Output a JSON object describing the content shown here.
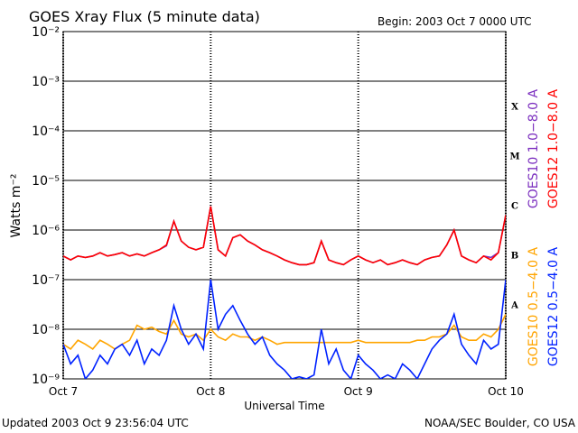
{
  "chart_data": {
    "type": "line",
    "title": "GOES Xray Flux (5 minute data)",
    "subtitle": "Begin:  2003 Oct 7 0000 UTC",
    "ylabel": "Watts m⁻²",
    "xlabel": "Universal Time",
    "footer_left": "Updated 2003 Oct  9 23:56:04 UTC",
    "footer_right": "NOAA/SEC Boulder, CO USA",
    "log_y": true,
    "grid": true,
    "class_labels": [
      "X",
      "M",
      "C",
      "B",
      "A"
    ],
    "xlim": [
      0,
      3
    ],
    "xticks": [
      {
        "value": 0,
        "label": "Oct 7"
      },
      {
        "value": 1,
        "label": "Oct 8"
      },
      {
        "value": 2,
        "label": "Oct 9"
      },
      {
        "value": 3,
        "label": "Oct 10"
      }
    ],
    "ylim": [
      1e-09,
      0.01
    ],
    "yticks": [
      {
        "value": 1e-09,
        "label": "10⁻⁹"
      },
      {
        "value": 1e-08,
        "label": "10⁻⁸"
      },
      {
        "value": 1e-07,
        "label": "10⁻⁷"
      },
      {
        "value": 1e-06,
        "label": "10⁻⁶"
      },
      {
        "value": 1e-05,
        "label": "10⁻⁵"
      },
      {
        "value": 0.0001,
        "label": "10⁻⁴"
      },
      {
        "value": 0.001,
        "label": "10⁻³"
      },
      {
        "value": 0.01,
        "label": "10⁻²"
      }
    ],
    "x": [
      0,
      0.05,
      0.1,
      0.15,
      0.2,
      0.25,
      0.3,
      0.35,
      0.4,
      0.45,
      0.5,
      0.55,
      0.6,
      0.65,
      0.7,
      0.75,
      0.8,
      0.85,
      0.9,
      0.95,
      1,
      1.05,
      1.1,
      1.15,
      1.2,
      1.25,
      1.3,
      1.35,
      1.4,
      1.45,
      1.5,
      1.55,
      1.6,
      1.65,
      1.7,
      1.75,
      1.8,
      1.85,
      1.9,
      1.95,
      2,
      2.05,
      2.1,
      2.15,
      2.2,
      2.25,
      2.3,
      2.35,
      2.4,
      2.45,
      2.5,
      2.55,
      2.6,
      2.65,
      2.7,
      2.75,
      2.8,
      2.85,
      2.9,
      2.95,
      3
    ],
    "series": [
      {
        "name": "GOES10 1.0−8.0 A",
        "color": "#7b2fbf",
        "values": [
          3e-07,
          2.5e-07,
          3e-07,
          2.8e-07,
          3e-07,
          3.5e-07,
          3e-07,
          3.2e-07,
          3.5e-07,
          3e-07,
          3.3e-07,
          3e-07,
          3.5e-07,
          4e-07,
          4.8e-07,
          1.5e-06,
          6e-07,
          4.5e-07,
          4e-07,
          4.5e-07,
          3e-06,
          4e-07,
          3e-07,
          7e-07,
          8e-07,
          6e-07,
          5e-07,
          4e-07,
          3.5e-07,
          3e-07,
          2.5e-07,
          2.2e-07,
          2e-07,
          2e-07,
          2.2e-07,
          6e-07,
          2.5e-07,
          2.2e-07,
          2e-07,
          2.5e-07,
          3e-07,
          2.5e-07,
          2.2e-07,
          2.5e-07,
          2e-07,
          2.2e-07,
          2.5e-07,
          2.2e-07,
          2e-07,
          2.5e-07,
          2.8e-07,
          3e-07,
          5e-07,
          1e-06,
          3e-07,
          2.5e-07,
          2.2e-07,
          3e-07,
          2.8e-07,
          3.5e-07,
          2e-06
        ]
      },
      {
        "name": "GOES12 1.0−8.0 A",
        "color": "#ff0000",
        "values": [
          3e-07,
          2.5e-07,
          3e-07,
          2.8e-07,
          3e-07,
          3.5e-07,
          3e-07,
          3.2e-07,
          3.5e-07,
          3e-07,
          3.3e-07,
          3e-07,
          3.5e-07,
          4e-07,
          5e-07,
          1.5e-06,
          6e-07,
          4.5e-07,
          4e-07,
          4.5e-07,
          3e-06,
          4e-07,
          3e-07,
          7e-07,
          8e-07,
          6e-07,
          5e-07,
          4e-07,
          3.5e-07,
          3e-07,
          2.5e-07,
          2.2e-07,
          2e-07,
          2e-07,
          2.2e-07,
          6e-07,
          2.5e-07,
          2.2e-07,
          2e-07,
          2.5e-07,
          3e-07,
          2.5e-07,
          2.2e-07,
          2.5e-07,
          2e-07,
          2.2e-07,
          2.5e-07,
          2.2e-07,
          2e-07,
          2.5e-07,
          2.8e-07,
          3e-07,
          5e-07,
          1e-06,
          3e-07,
          2.5e-07,
          2.2e-07,
          3e-07,
          2.5e-07,
          3.5e-07,
          2e-06
        ]
      },
      {
        "name": "GOES10 0.5−4.0 A",
        "color": "#ffa500",
        "values": [
          5e-09,
          4e-09,
          6e-09,
          5e-09,
          4e-09,
          6e-09,
          5e-09,
          4e-09,
          5e-09,
          6e-09,
          1.2e-08,
          1e-08,
          1.1e-08,
          9e-09,
          8e-09,
          1.5e-08,
          8e-09,
          7e-09,
          8e-09,
          6e-09,
          1e-08,
          7e-09,
          6e-09,
          8e-09,
          7e-09,
          7e-09,
          6e-09,
          7e-09,
          6e-09,
          5e-09,
          5.4e-09,
          5.4e-09,
          5.4e-09,
          5.4e-09,
          5.4e-09,
          5.4e-09,
          5.4e-09,
          5.4e-09,
          5.4e-09,
          5.4e-09,
          6e-09,
          5.4e-09,
          5.4e-09,
          5.4e-09,
          5.4e-09,
          5.4e-09,
          5.4e-09,
          5.4e-09,
          6e-09,
          6e-09,
          7e-09,
          7e-09,
          8e-09,
          1.2e-08,
          7e-09,
          6e-09,
          6e-09,
          8e-09,
          7e-09,
          1e-08,
          2e-08
        ]
      },
      {
        "name": "GOES12 0.5−4.0 A",
        "color": "#0022ff",
        "values": [
          5e-09,
          2e-09,
          3e-09,
          1e-09,
          1.5e-09,
          3e-09,
          2e-09,
          4e-09,
          5e-09,
          3e-09,
          6e-09,
          2e-09,
          4e-09,
          3e-09,
          6e-09,
          3e-08,
          1e-08,
          5e-09,
          8e-09,
          4e-09,
          1e-07,
          1e-08,
          2e-08,
          3e-08,
          1.5e-08,
          8e-09,
          5e-09,
          7e-09,
          3e-09,
          2e-09,
          1.5e-09,
          1e-09,
          1.1e-09,
          1e-09,
          1.2e-09,
          1e-08,
          2e-09,
          4e-09,
          1.5e-09,
          1e-09,
          3e-09,
          2e-09,
          1.5e-09,
          1e-09,
          1.2e-09,
          1e-09,
          2e-09,
          1.5e-09,
          1e-09,
          2e-09,
          4e-09,
          6e-09,
          8e-09,
          2e-08,
          5e-09,
          3e-09,
          2e-09,
          6e-09,
          4e-09,
          5e-09,
          1e-07
        ]
      }
    ]
  }
}
